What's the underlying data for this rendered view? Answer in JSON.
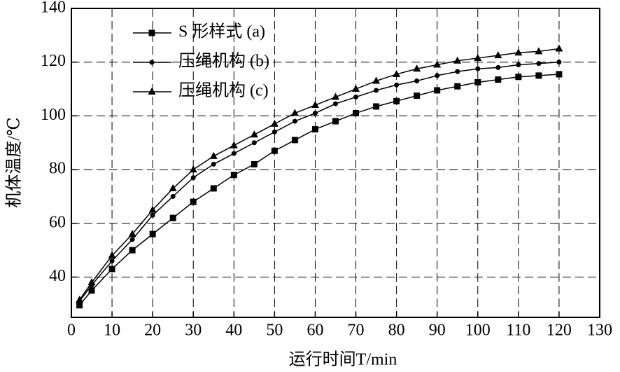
{
  "chart_data": {
    "type": "line",
    "x_label": "运行时间T/min",
    "y_label": "机体温度/℃",
    "x": [
      2,
      5,
      10,
      15,
      20,
      25,
      30,
      35,
      40,
      45,
      50,
      55,
      60,
      65,
      70,
      75,
      80,
      85,
      90,
      95,
      100,
      105,
      110,
      115,
      120
    ],
    "series": [
      {
        "name": "S 形样式 (a)",
        "color": "#000000",
        "marker": "square",
        "values": [
          29.5,
          35,
          43,
          50,
          56,
          62,
          68,
          73,
          78,
          82,
          87,
          91,
          95,
          98,
          101,
          103.5,
          105.5,
          107.5,
          109.5,
          111,
          112.5,
          113.5,
          114.5,
          115,
          115.5
        ]
      },
      {
        "name": "压绳机构 (b)",
        "color": "#000000",
        "marker": "circle",
        "values": [
          31,
          37,
          46,
          54,
          63,
          70,
          77,
          82,
          86,
          90,
          94,
          98,
          101,
          104.5,
          107,
          109.5,
          111.5,
          113,
          115,
          116.5,
          117.5,
          118,
          119,
          119.5,
          120
        ]
      },
      {
        "name": "压绳机构 (c)",
        "color": "#000000",
        "marker": "triangle",
        "values": [
          31.5,
          38,
          48,
          56,
          65,
          73,
          80,
          85,
          89,
          93,
          97,
          101,
          104,
          107,
          110,
          113,
          115.5,
          117.5,
          119,
          120.5,
          121.5,
          122.5,
          123.5,
          124,
          125
        ]
      }
    ],
    "xlim": [
      0,
      130
    ],
    "xticks": [
      0,
      10,
      20,
      30,
      40,
      50,
      60,
      70,
      80,
      90,
      100,
      110,
      120,
      130
    ],
    "ylim": [
      25,
      140
    ],
    "yticks": [
      40,
      60,
      80,
      100,
      120,
      140
    ],
    "grid": true,
    "legend": "upper-left"
  }
}
